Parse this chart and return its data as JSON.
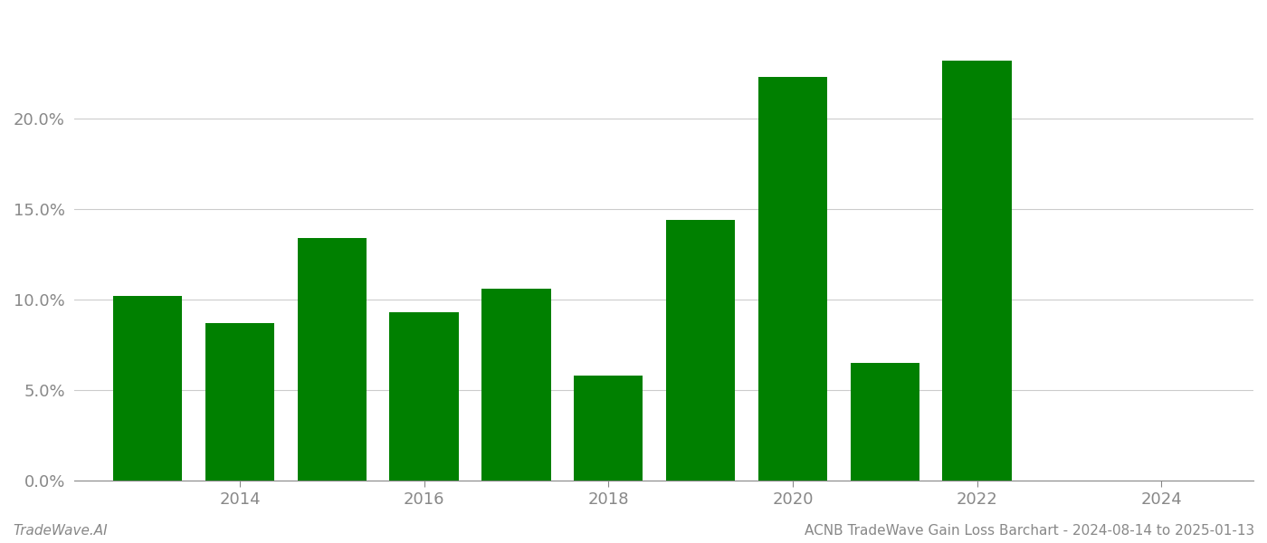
{
  "years": [
    2013,
    2014,
    2015,
    2016,
    2017,
    2018,
    2019,
    2020,
    2021,
    2022
  ],
  "values": [
    0.102,
    0.087,
    0.134,
    0.093,
    0.106,
    0.058,
    0.144,
    0.223,
    0.065,
    0.232
  ],
  "bar_color": "#008000",
  "background_color": "#ffffff",
  "grid_color": "#cccccc",
  "axis_color": "#888888",
  "tick_color": "#888888",
  "ylabel_ticks": [
    0.0,
    0.05,
    0.1,
    0.15,
    0.2
  ],
  "ylabel_labels": [
    "0.0%",
    "5.0%",
    "10.0%",
    "15.0%",
    "20.0%"
  ],
  "xtick_positions": [
    2014,
    2016,
    2018,
    2020,
    2022,
    2024
  ],
  "xtick_labels": [
    "2014",
    "2016",
    "2018",
    "2020",
    "2022",
    "2024"
  ],
  "xlim": [
    2012.2,
    2025.0
  ],
  "ylim": [
    0.0,
    0.258
  ],
  "footer_left": "TradeWave.AI",
  "footer_right": "ACNB TradeWave Gain Loss Barchart - 2024-08-14 to 2025-01-13",
  "bar_width": 0.75
}
